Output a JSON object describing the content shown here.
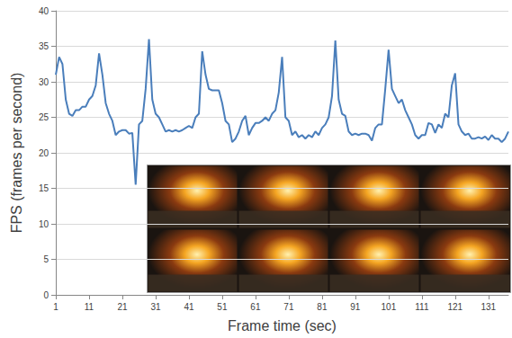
{
  "chart_data": {
    "type": "line",
    "x_label": "Frame time (sec)",
    "y_label": "FPS (frames per second)",
    "x": [
      1,
      2,
      3,
      4,
      5,
      6,
      7,
      8,
      9,
      10,
      11,
      12,
      13,
      14,
      15,
      16,
      17,
      18,
      19,
      20,
      21,
      22,
      23,
      24,
      25,
      26,
      27,
      28,
      29,
      30,
      31,
      32,
      33,
      34,
      35,
      36,
      37,
      38,
      39,
      40,
      41,
      42,
      43,
      44,
      45,
      46,
      47,
      48,
      49,
      50,
      51,
      52,
      53,
      54,
      55,
      56,
      57,
      58,
      59,
      60,
      61,
      62,
      63,
      64,
      65,
      66,
      67,
      68,
      69,
      70,
      71,
      72,
      73,
      74,
      75,
      76,
      77,
      78,
      79,
      80,
      81,
      82,
      83,
      84,
      85,
      86,
      87,
      88,
      89,
      90,
      91,
      92,
      93,
      94,
      95,
      96,
      97,
      98,
      99,
      100,
      101,
      102,
      103,
      104,
      105,
      106,
      107,
      108,
      109,
      110,
      111,
      112,
      113,
      114,
      115,
      116,
      117,
      118,
      119,
      120,
      121,
      122,
      123,
      124,
      125,
      126,
      127,
      128,
      129,
      130,
      131,
      132,
      133,
      134,
      135,
      136,
      137
    ],
    "values": [
      31,
      33.5,
      32.5,
      27.5,
      25.5,
      25.2,
      26,
      26,
      26.5,
      26.5,
      27.5,
      28,
      29.5,
      34,
      31,
      27,
      25.5,
      24.5,
      22.5,
      23,
      23.2,
      23.2,
      22.7,
      22.8,
      15.5,
      24,
      24.5,
      29,
      36,
      27.5,
      25.5,
      25,
      24,
      23,
      23.2,
      23,
      23.2,
      23,
      23.2,
      23.5,
      23.8,
      23.5,
      25,
      25.5,
      34.3,
      31,
      29,
      28.8,
      28.8,
      28.8,
      27,
      24.5,
      24,
      21.5,
      22,
      23,
      24.5,
      25.2,
      22.5,
      23.5,
      24.2,
      24.2,
      24.5,
      25,
      24.5,
      25.5,
      26,
      28.5,
      33.5,
      25,
      24.5,
      22.5,
      23,
      22.2,
      22.5,
      22,
      22.5,
      22.2,
      23,
      22.5,
      23.5,
      24,
      25,
      28,
      35.8,
      27.5,
      25.5,
      25.2,
      23,
      22.5,
      22.7,
      22.5,
      22.7,
      22.7,
      22.5,
      21.7,
      23.5,
      24,
      24,
      29,
      34.5,
      29,
      28,
      27,
      27.5,
      26,
      25,
      24,
      22.5,
      22,
      22.5,
      22.5,
      24.2,
      24,
      22.8,
      24,
      23.5,
      25.5,
      25,
      29.5,
      31.2,
      24,
      23,
      22.5,
      22.7,
      22,
      22,
      22.2,
      22,
      22.3,
      21.8,
      22.5,
      22,
      22,
      21.5,
      22,
      23
    ],
    "color": "#4a7ebb",
    "xlim": [
      1,
      137
    ],
    "xticks": [
      1,
      11,
      21,
      31,
      41,
      51,
      61,
      71,
      81,
      91,
      101,
      111,
      121,
      131
    ],
    "ylim": [
      0,
      40
    ],
    "yticks": [
      0,
      5,
      10,
      15,
      20,
      25,
      30,
      35,
      40
    ],
    "grid": true
  }
}
